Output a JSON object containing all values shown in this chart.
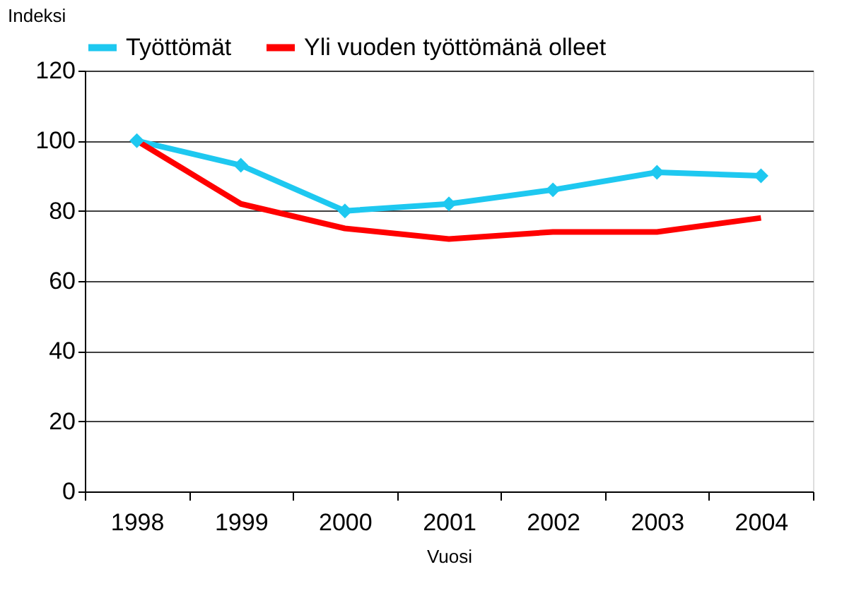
{
  "chart_data": {
    "type": "line",
    "xlabel": "Vuosi",
    "ylabel": "Indeksi",
    "categories": [
      "1998",
      "1999",
      "2000",
      "2001",
      "2002",
      "2003",
      "2004"
    ],
    "series": [
      {
        "name": "Työttömät",
        "color": "#1ec8f0",
        "marker": "diamond",
        "values": [
          100,
          93,
          80,
          82,
          86,
          91,
          90
        ]
      },
      {
        "name": "Yli vuoden työttömänä olleet",
        "color": "#ff0000",
        "marker": "none",
        "values": [
          100,
          82,
          75,
          72,
          74,
          74,
          78
        ]
      }
    ],
    "ylim": [
      0,
      120
    ],
    "yticks": [
      0,
      20,
      40,
      60,
      80,
      100,
      120
    ],
    "grid": "y",
    "legend": "top",
    "line_style": "solid"
  }
}
